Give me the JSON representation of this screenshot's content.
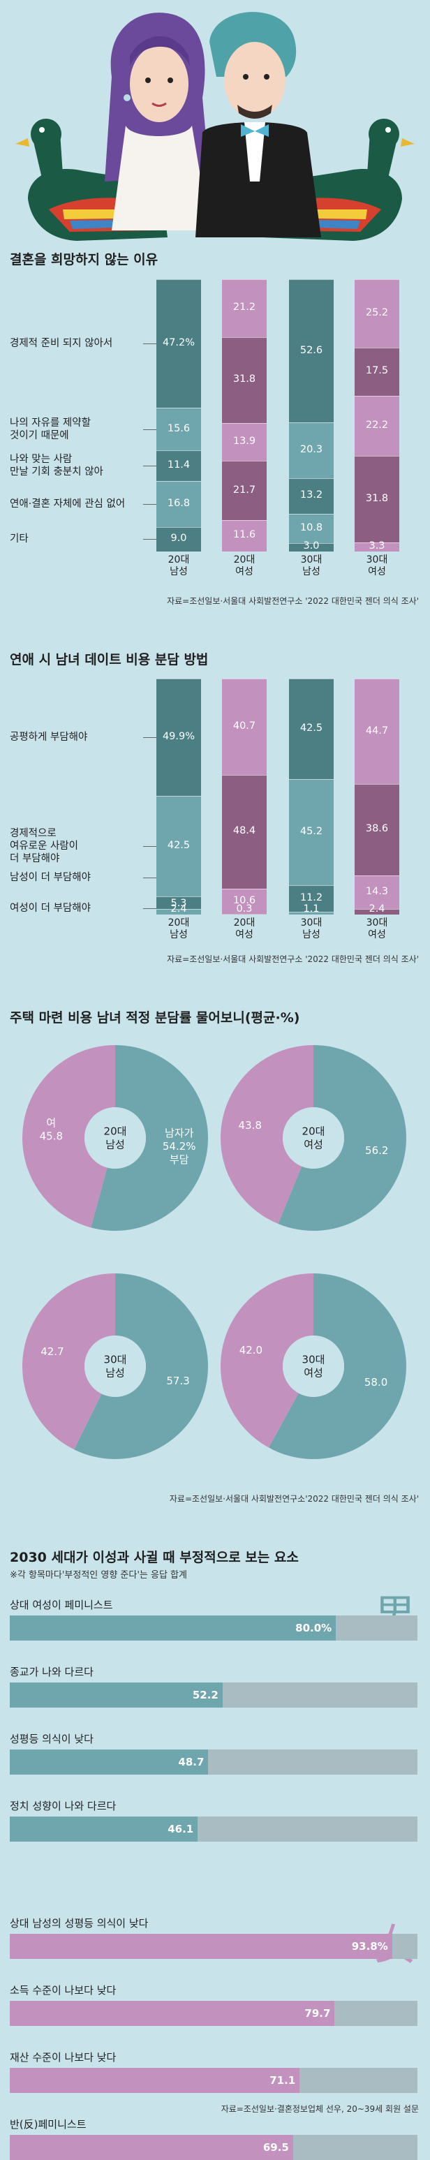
{
  "colors": {
    "background": "#c9e3ea",
    "male_dark": "#4b7f84",
    "male_light": "#6fa6ae",
    "female_dark": "#8c5e82",
    "female_light": "#c391be",
    "hbar_track": "#a9bcc2",
    "hbar_male": "#6fa6ae",
    "hbar_female": "#c391be"
  },
  "icons": {
    "illustration": "couple-with-wedding-ducks-illustration",
    "male_char": "男",
    "female_char": "女"
  },
  "chart_data": [
    {
      "type": "bar",
      "stacked": true,
      "title": "결혼을 희망하지 않는 이유",
      "categories": [
        "20대\n남성",
        "20대\n여성",
        "30대\n남성",
        "30대\n여성"
      ],
      "series": [
        {
          "name": "경제적 준비 되지 않아서",
          "values": [
            47.2,
            21.2,
            52.6,
            25.2
          ],
          "labels": [
            "47.2%",
            "21.2",
            "52.6",
            "25.2"
          ]
        },
        {
          "name": "나의 자유를 제약할 것이기 때문에",
          "values": [
            15.6,
            31.8,
            20.3,
            17.5
          ],
          "labels": [
            "15.6",
            "31.8",
            "20.3",
            "17.5"
          ]
        },
        {
          "name": "나와 맞는 사람 만날 기회 충분치 않아",
          "values": [
            11.4,
            13.9,
            13.2,
            22.2
          ],
          "labels": [
            "11.4",
            "13.9",
            "13.2",
            "22.2"
          ]
        },
        {
          "name": "연애·결혼 자체에 관심 없어",
          "values": [
            16.8,
            21.7,
            10.8,
            31.8
          ],
          "labels": [
            "16.8",
            "21.7",
            "10.8",
            "31.8"
          ]
        },
        {
          "name": "기타",
          "values": [
            9.0,
            11.6,
            3.0,
            3.3
          ],
          "labels": [
            "9.0",
            "11.6",
            "3.0",
            "3.3"
          ]
        }
      ],
      "category_labels": [
        "경제적 준비 되지 않아서",
        "나의 자유를 제약할\n것이기 때문에",
        "나와 맞는 사람\n만날 기회 충분치 않아",
        "연애·결혼 자체에 관심 없어",
        "기타"
      ],
      "source": "자료=조선일보·서울대 사회발전연구소 '2022 대한민국 젠더 의식 조사'"
    },
    {
      "type": "bar",
      "stacked": true,
      "title": "연애 시 남녀 데이트 비용 분담 방법",
      "categories": [
        "20대\n남성",
        "20대\n여성",
        "30대\n남성",
        "30대\n여성"
      ],
      "series": [
        {
          "name": "공평하게 부담해야",
          "values": [
            49.9,
            40.7,
            42.5,
            44.7
          ],
          "labels": [
            "49.9%",
            "40.7",
            "42.5",
            "44.7"
          ]
        },
        {
          "name": "경제적으로 여유로운 사람이 더 부담해야",
          "values": [
            42.5,
            48.4,
            45.2,
            38.6
          ],
          "labels": [
            "42.5",
            "48.4",
            "45.2",
            "38.6"
          ]
        },
        {
          "name": "남성이 더 부담해야",
          "values": [
            5.3,
            10.6,
            11.2,
            14.3
          ],
          "labels": [
            "5.3",
            "10.6",
            "11.2",
            "14.3"
          ]
        },
        {
          "name": "여성이 더 부담해야",
          "values": [
            2.4,
            0.3,
            1.1,
            2.4
          ],
          "labels": [
            "2.4",
            "0.3",
            "1.1",
            "2.4"
          ]
        }
      ],
      "category_labels": [
        "공평하게 부담해야",
        "경제적으로\n여유로운 사람이\n더 부담해야",
        "남성이 더 부담해야",
        "여성이 더 부담해야"
      ],
      "source": "자료=조선일보·서울대 사회발전연구소 '2022 대한민국 젠더 의식 조사'"
    },
    {
      "type": "pie",
      "donut": true,
      "title": "주택 마련 비용 남녀 적정 분담률 물어보니(평균·%)",
      "charts": [
        {
          "center": "20대\n남성",
          "male": 54.2,
          "female": 45.8,
          "male_label": "남자가\n54.2%\n부담",
          "female_label": "여\n45.8"
        },
        {
          "center": "20대\n여성",
          "male": 56.2,
          "female": 43.8,
          "male_label": "56.2",
          "female_label": "43.8"
        },
        {
          "center": "30대\n남성",
          "male": 57.3,
          "female": 42.7,
          "male_label": "57.3",
          "female_label": "42.7"
        },
        {
          "center": "30대\n여성",
          "male": 58.0,
          "female": 42.0,
          "male_label": "58.0",
          "female_label": "42.0"
        }
      ],
      "source": "자료=조선일보·서울대 사회발전연구소'2022 대한민국 젠더 의식 조사'"
    },
    {
      "type": "bar",
      "orientation": "horizontal",
      "title": "2030 세대가 이성과 사귈 때 부정적으로 보는 요소",
      "subtitle": "※각 항목마다'부정적인 영향 준다'는 응답 합계",
      "xlim": [
        0,
        100
      ],
      "groups": [
        {
          "name": "男",
          "items": [
            {
              "label": "상대 여성이 페미니스트",
              "value": 80.0,
              "text": "80.0%"
            },
            {
              "label": "종교가 나와 다르다",
              "value": 52.2,
              "text": "52.2"
            },
            {
              "label": "성평등 의식이 낮다",
              "value": 48.7,
              "text": "48.7"
            },
            {
              "label": "정치 성향이 나와 다르다",
              "value": 46.1,
              "text": "46.1"
            }
          ]
        },
        {
          "name": "女",
          "items": [
            {
              "label": "상대 남성의 성평등 의식이 낮다",
              "value": 93.8,
              "text": "93.8%"
            },
            {
              "label": "소득 수준이 나보다 낮다",
              "value": 79.7,
              "text": "79.7"
            },
            {
              "label": "재산 수준이 나보다 낮다",
              "value": 71.1,
              "text": "71.1"
            },
            {
              "label": "반(反)페미니스트",
              "value": 69.5,
              "text": "69.5"
            }
          ]
        }
      ],
      "source": "자료=조선일보·결혼정보업체 선우, 20~39세 회원 설문"
    }
  ]
}
